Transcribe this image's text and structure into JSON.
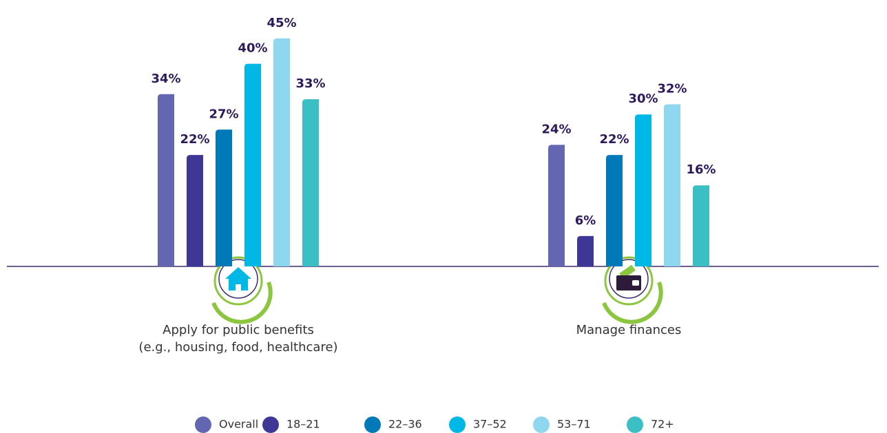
{
  "chart_data": {
    "type": "bar",
    "categories": [
      "Apply for public benefits\n(e.g., housing, food, healthcare)",
      "Manage finances"
    ],
    "series": [
      {
        "name": "Overall",
        "color": "#6366b0",
        "values": [
          34,
          24
        ],
        "value_labels": [
          "34%",
          "24%"
        ]
      },
      {
        "name": "18–21",
        "color": "#3f3795",
        "values": [
          22,
          6
        ],
        "value_labels": [
          "22%",
          "6%"
        ]
      },
      {
        "name": "22–36",
        "color": "#0079b8",
        "values": [
          27,
          22
        ],
        "value_labels": [
          "27%",
          "22%"
        ]
      },
      {
        "name": "37–52",
        "color": "#00b8e6",
        "values": [
          40,
          30
        ],
        "value_labels": [
          "40%",
          "30%"
        ]
      },
      {
        "name": "53–71",
        "color": "#8fd6ef",
        "values": [
          45,
          32
        ],
        "value_labels": [
          "45%",
          "32%"
        ]
      },
      {
        "name": "72+",
        "color": "#3bbfc4",
        "values": [
          33,
          16
        ],
        "value_labels": [
          "33%",
          "16%"
        ]
      }
    ]
  }
}
